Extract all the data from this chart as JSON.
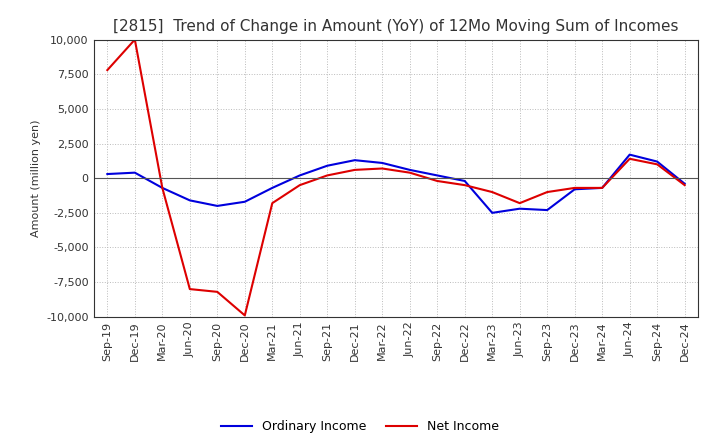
{
  "title": "[2815]  Trend of Change in Amount (YoY) of 12Mo Moving Sum of Incomes",
  "ylabel": "Amount (million yen)",
  "title_color": "#333333",
  "background_color": "#ffffff",
  "grid_color": "#bbbbbb",
  "x_labels": [
    "Sep-19",
    "Dec-19",
    "Mar-20",
    "Jun-20",
    "Sep-20",
    "Dec-20",
    "Mar-21",
    "Jun-21",
    "Sep-21",
    "Dec-21",
    "Mar-22",
    "Jun-22",
    "Sep-22",
    "Dec-22",
    "Mar-23",
    "Jun-23",
    "Sep-23",
    "Dec-23",
    "Mar-24",
    "Jun-24",
    "Sep-24",
    "Dec-24"
  ],
  "ordinary_income": [
    300,
    400,
    -700,
    -1600,
    -2000,
    -1700,
    -700,
    200,
    900,
    1300,
    1100,
    600,
    200,
    -200,
    -2500,
    -2200,
    -2300,
    -800,
    -700,
    1700,
    1200,
    -400
  ],
  "net_income": [
    7800,
    10000,
    -700,
    -8000,
    -8200,
    -9900,
    -1800,
    -500,
    200,
    600,
    700,
    400,
    -200,
    -500,
    -1000,
    -1800,
    -1000,
    -700,
    -700,
    1400,
    1000,
    -500
  ],
  "ordinary_income_color": "#0000dd",
  "net_income_color": "#dd0000",
  "ylim_min": -10000,
  "ylim_max": 10000,
  "yticks": [
    -10000,
    -7500,
    -5000,
    -2500,
    0,
    2500,
    5000,
    7500,
    10000
  ],
  "legend_ordinary": "Ordinary Income",
  "legend_net": "Net Income",
  "title_fontsize": 11,
  "axis_fontsize": 8,
  "ylabel_fontsize": 8,
  "linewidth": 1.5
}
